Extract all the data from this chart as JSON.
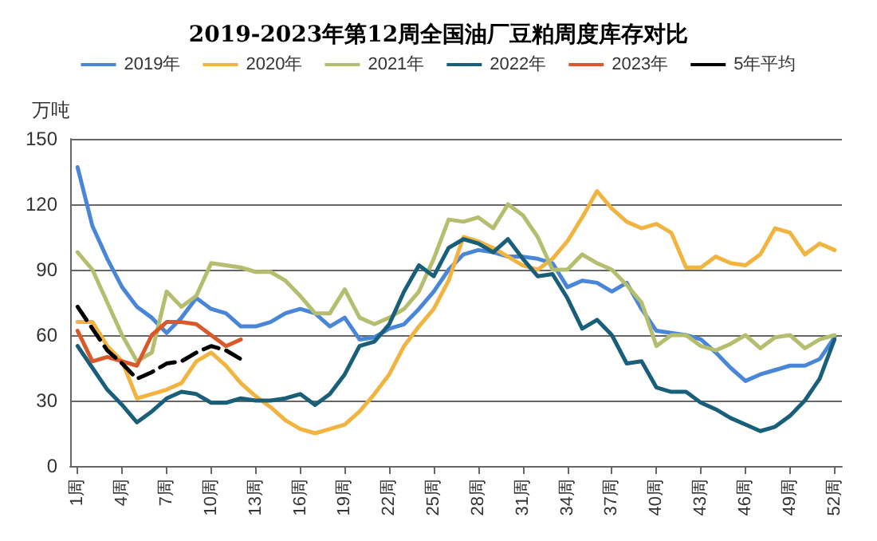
{
  "chart_data": {
    "type": "line",
    "title": "2019-2023年第12周全国油厂豆粕周度库存对比",
    "ylabel": "万吨",
    "categories": [
      "1周",
      null,
      null,
      "4周",
      null,
      null,
      "7周",
      null,
      null,
      "10周",
      null,
      null,
      "13周",
      null,
      null,
      "16周",
      null,
      null,
      "19周",
      null,
      null,
      "22周",
      null,
      null,
      "25周",
      null,
      null,
      "28周",
      null,
      null,
      "31周",
      null,
      null,
      "34周",
      null,
      null,
      "37周",
      null,
      null,
      "40周",
      null,
      null,
      "43周",
      null,
      null,
      "46周",
      null,
      null,
      "49周",
      null,
      null,
      "52周"
    ],
    "series": [
      {
        "name": "2019年",
        "color": "#4a86d8",
        "values": [
          137,
          110,
          95,
          82,
          73,
          68,
          61,
          68,
          77,
          72,
          70,
          64,
          64,
          66,
          70,
          72,
          70,
          64,
          68,
          58,
          59,
          63,
          65,
          72,
          80,
          90,
          97,
          99,
          98,
          96,
          96,
          95,
          93,
          82,
          85,
          84,
          80,
          84,
          72,
          62,
          61,
          60,
          58,
          52,
          45,
          39,
          42,
          44,
          46,
          46,
          49,
          59
        ]
      },
      {
        "name": "2020年",
        "color": "#f2b441",
        "values": [
          66,
          66,
          55,
          48,
          31,
          33,
          35,
          38,
          48,
          52,
          46,
          38,
          32,
          27,
          21,
          17,
          15,
          17,
          19,
          25,
          33,
          42,
          55,
          64,
          72,
          85,
          105,
          103,
          100,
          96,
          92,
          90,
          95,
          103,
          114,
          126,
          118,
          112,
          109,
          111,
          107,
          91,
          91,
          96,
          93,
          92,
          97,
          109,
          107,
          97,
          102,
          99
        ]
      },
      {
        "name": "2021年",
        "color": "#b5bd6e",
        "values": [
          98,
          90,
          75,
          60,
          48,
          52,
          80,
          73,
          78,
          93,
          92,
          91,
          89,
          89,
          85,
          78,
          70,
          70,
          81,
          68,
          65,
          68,
          72,
          80,
          95,
          113,
          112,
          114,
          109,
          120,
          115,
          105,
          90,
          90,
          97,
          93,
          90,
          83,
          75,
          55,
          60,
          60,
          55,
          53,
          56,
          60,
          54,
          59,
          60,
          54,
          58,
          60
        ]
      },
      {
        "name": "2022年",
        "color": "#1a5f7a",
        "values": [
          55,
          45,
          35,
          28,
          20,
          25,
          31,
          34,
          33,
          29,
          29,
          31,
          30,
          30,
          31,
          33,
          28,
          33,
          42,
          55,
          57,
          65,
          80,
          92,
          87,
          100,
          104,
          102,
          98,
          104,
          95,
          87,
          88,
          77,
          63,
          67,
          60,
          47,
          48,
          36,
          34,
          34,
          29,
          26,
          22,
          19,
          16,
          18,
          23,
          30,
          40,
          58
        ]
      },
      {
        "name": "2023年",
        "color": "#d9592b",
        "values": [
          62,
          48,
          50,
          48,
          46,
          60,
          66,
          66,
          65,
          60,
          55,
          58,
          null,
          null,
          null,
          null,
          null,
          null,
          null,
          null,
          null,
          null,
          null,
          null,
          null,
          null,
          null,
          null,
          null,
          null,
          null,
          null,
          null,
          null,
          null,
          null,
          null,
          null,
          null,
          null,
          null,
          null,
          null,
          null,
          null,
          null,
          null,
          null,
          null,
          null,
          null,
          null
        ]
      },
      {
        "name": "5年平均",
        "color": "#000000",
        "line_style": "dashed",
        "values": [
          73,
          63,
          53,
          47,
          40,
          43,
          47,
          48,
          52,
          55,
          53,
          49,
          null,
          null,
          null,
          null,
          null,
          null,
          null,
          null,
          null,
          null,
          null,
          null,
          null,
          null,
          null,
          null,
          null,
          null,
          null,
          null,
          null,
          null,
          null,
          null,
          null,
          null,
          null,
          null,
          null,
          null,
          null,
          null,
          null,
          null,
          null,
          null,
          null,
          null,
          null,
          null
        ]
      }
    ],
    "ylim": [
      0,
      150
    ],
    "yticks": [
      0,
      30,
      60,
      90,
      120,
      150
    ],
    "grid": "y",
    "legend": "top",
    "marker": "none",
    "line_style": "solid"
  }
}
